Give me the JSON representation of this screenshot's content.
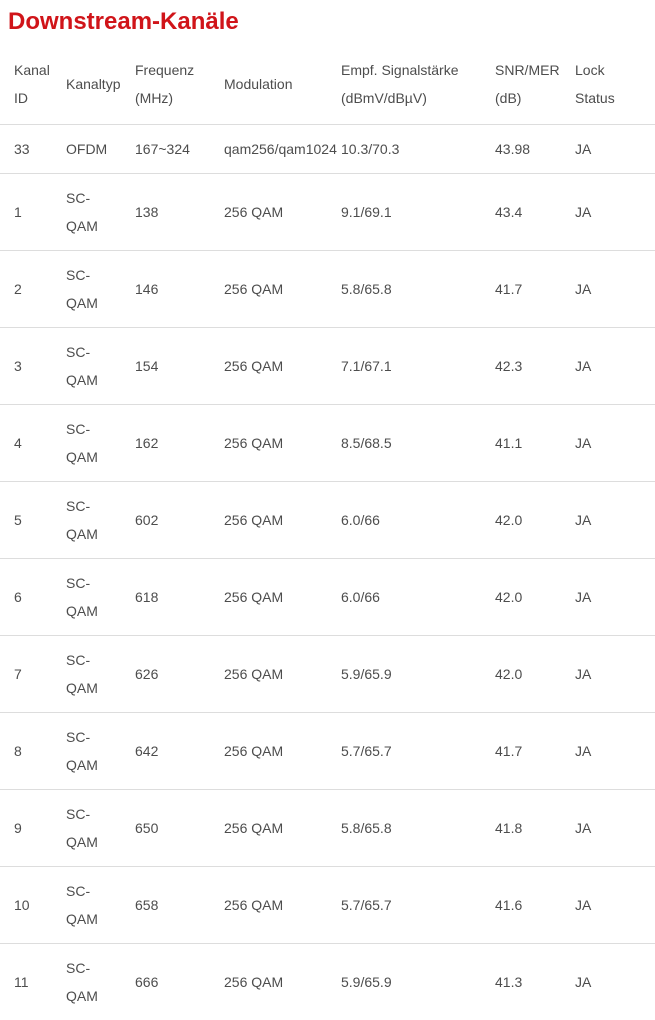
{
  "page": {
    "title": "Downstream-Kanäle"
  },
  "colors": {
    "title": "#d01419",
    "text": "#4d4d4d",
    "divider": "#dddddd",
    "background": "#ffffff"
  },
  "table": {
    "columns": [
      {
        "id": "kanal_id",
        "label": "Kanal\nID"
      },
      {
        "id": "kanaltyp",
        "label": "Kanaltyp"
      },
      {
        "id": "frequenz_mhz",
        "label": "Frequenz\n(MHz)"
      },
      {
        "id": "modulation",
        "label": "Modulation"
      },
      {
        "id": "empf_signalstaerke",
        "label": "Empf. Signalstärke\n(dBmV/dBµV)"
      },
      {
        "id": "snr_mer",
        "label": "SNR/MER\n(dB)"
      },
      {
        "id": "lock_status",
        "label": "Lock\nStatus"
      }
    ],
    "rows": [
      {
        "kanal_id": "33",
        "kanaltyp": "OFDM",
        "frequenz_mhz": "167~324",
        "modulation": "qam256/qam1024",
        "empf_signalstaerke": "10.3/70.3",
        "snr_mer": "43.98",
        "lock_status": "JA"
      },
      {
        "kanal_id": "1",
        "kanaltyp": "SC-\nQAM",
        "frequenz_mhz": "138",
        "modulation": "256 QAM",
        "empf_signalstaerke": "9.1/69.1",
        "snr_mer": "43.4",
        "lock_status": "JA"
      },
      {
        "kanal_id": "2",
        "kanaltyp": "SC-\nQAM",
        "frequenz_mhz": "146",
        "modulation": "256 QAM",
        "empf_signalstaerke": "5.8/65.8",
        "snr_mer": "41.7",
        "lock_status": "JA"
      },
      {
        "kanal_id": "3",
        "kanaltyp": "SC-\nQAM",
        "frequenz_mhz": "154",
        "modulation": "256 QAM",
        "empf_signalstaerke": "7.1/67.1",
        "snr_mer": "42.3",
        "lock_status": "JA"
      },
      {
        "kanal_id": "4",
        "kanaltyp": "SC-\nQAM",
        "frequenz_mhz": "162",
        "modulation": "256 QAM",
        "empf_signalstaerke": "8.5/68.5",
        "snr_mer": "41.1",
        "lock_status": "JA"
      },
      {
        "kanal_id": "5",
        "kanaltyp": "SC-\nQAM",
        "frequenz_mhz": "602",
        "modulation": "256 QAM",
        "empf_signalstaerke": "6.0/66",
        "snr_mer": "42.0",
        "lock_status": "JA"
      },
      {
        "kanal_id": "6",
        "kanaltyp": "SC-\nQAM",
        "frequenz_mhz": "618",
        "modulation": "256 QAM",
        "empf_signalstaerke": "6.0/66",
        "snr_mer": "42.0",
        "lock_status": "JA"
      },
      {
        "kanal_id": "7",
        "kanaltyp": "SC-\nQAM",
        "frequenz_mhz": "626",
        "modulation": "256 QAM",
        "empf_signalstaerke": "5.9/65.9",
        "snr_mer": "42.0",
        "lock_status": "JA"
      },
      {
        "kanal_id": "8",
        "kanaltyp": "SC-\nQAM",
        "frequenz_mhz": "642",
        "modulation": "256 QAM",
        "empf_signalstaerke": "5.7/65.7",
        "snr_mer": "41.7",
        "lock_status": "JA"
      },
      {
        "kanal_id": "9",
        "kanaltyp": "SC-\nQAM",
        "frequenz_mhz": "650",
        "modulation": "256 QAM",
        "empf_signalstaerke": "5.8/65.8",
        "snr_mer": "41.8",
        "lock_status": "JA"
      },
      {
        "kanal_id": "10",
        "kanaltyp": "SC-\nQAM",
        "frequenz_mhz": "658",
        "modulation": "256 QAM",
        "empf_signalstaerke": "5.7/65.7",
        "snr_mer": "41.6",
        "lock_status": "JA"
      },
      {
        "kanal_id": "11",
        "kanaltyp": "SC-\nQAM",
        "frequenz_mhz": "666",
        "modulation": "256 QAM",
        "empf_signalstaerke": "5.9/65.9",
        "snr_mer": "41.3",
        "lock_status": "JA"
      }
    ]
  }
}
